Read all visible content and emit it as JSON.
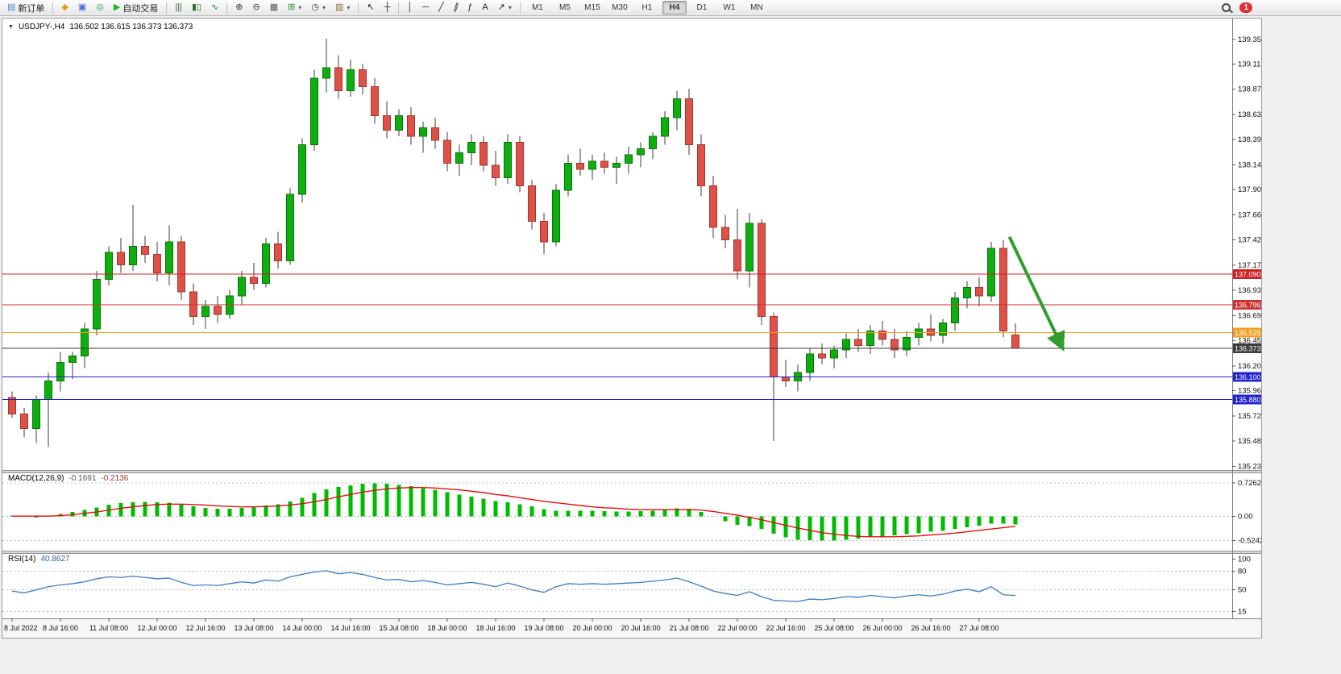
{
  "toolbar": {
    "active_timeframe": "H4",
    "notification_count": "1",
    "items": [
      {
        "type": "button",
        "name": "new-order-button",
        "glyph": "▤",
        "color": "#5b7fd0",
        "label": "新订单"
      },
      {
        "type": "sep"
      },
      {
        "type": "button",
        "name": "market-watch-button",
        "glyph": "◆",
        "color": "#d9a21b"
      },
      {
        "type": "button",
        "name": "data-window-button",
        "glyph": "▣",
        "color": "#4a6fd4"
      },
      {
        "type": "button",
        "name": "navigator-button",
        "glyph": "◎",
        "color": "#3f9e3f"
      },
      {
        "type": "button",
        "name": "autotrading-button",
        "glyph": "▶",
        "color": "#18b518",
        "label": "自动交易"
      },
      {
        "type": "sep"
      },
      {
        "type": "button",
        "name": "bars-chart-button",
        "glyph": "|||",
        "color": "#2e6e2e"
      },
      {
        "type": "button",
        "name": "candlestick-chart-button",
        "glyph": "▮▯",
        "color": "#2e6e2e"
      },
      {
        "type": "button",
        "name": "line-chart-button",
        "glyph": "∿",
        "color": "#2e6e2e"
      },
      {
        "type": "sep"
      },
      {
        "type": "button",
        "name": "zoom-in-button",
        "glyph": "⊕",
        "color": "#333333"
      },
      {
        "type": "button",
        "name": "zoom-out-button",
        "glyph": "⊖",
        "color": "#333333"
      },
      {
        "type": "button",
        "name": "tile-windows-button",
        "glyph": "▦",
        "color": "#555555"
      },
      {
        "type": "button",
        "name": "indicators-button",
        "glyph": "⊞",
        "color": "#2e8b2e",
        "dropdown": true
      },
      {
        "type": "button",
        "name": "periods-button",
        "glyph": "◷",
        "color": "#333333",
        "dropdown": true
      },
      {
        "type": "button",
        "name": "templates-button",
        "glyph": "▥",
        "color": "#8a6d3b",
        "dropdown": true
      },
      {
        "type": "sep"
      },
      {
        "type": "button",
        "name": "cursor-button",
        "glyph": "↖",
        "color": "#222222"
      },
      {
        "type": "button",
        "name": "crosshair-button",
        "glyph": "┼",
        "color": "#222222"
      },
      {
        "type": "sep"
      },
      {
        "type": "button",
        "name": "vertical-line-button",
        "glyph": "│",
        "color": "#222222"
      },
      {
        "type": "button",
        "name": "horizontal-line-button",
        "glyph": "─",
        "color": "#222222"
      },
      {
        "type": "button",
        "name": "trendline-button",
        "glyph": "╱",
        "color": "#222222"
      },
      {
        "type": "button",
        "name": "channel-button",
        "glyph": "∥",
        "color": "#222222",
        "cls": "skew"
      },
      {
        "type": "button",
        "name": "fibonacci-button",
        "glyph": "ƒ",
        "color": "#222222"
      },
      {
        "type": "button",
        "name": "text-button",
        "glyph": "A",
        "color": "#222222"
      },
      {
        "type": "button",
        "name": "arrows-button",
        "glyph": "↗",
        "color": "#222222",
        "dropdown": true
      },
      {
        "type": "sep"
      },
      {
        "type": "tf",
        "label": "M1"
      },
      {
        "type": "tf",
        "label": "M5"
      },
      {
        "type": "tf",
        "label": "M15"
      },
      {
        "type": "tf",
        "label": "M30"
      },
      {
        "type": "tf",
        "label": "H1"
      },
      {
        "type": "tf",
        "label": "H4"
      },
      {
        "type": "tf",
        "label": "D1"
      },
      {
        "type": "tf",
        "label": "W1"
      },
      {
        "type": "tf",
        "label": "MN"
      },
      {
        "type": "spacer"
      },
      {
        "type": "button",
        "name": "search-button",
        "glyph": "",
        "cls": "mag"
      },
      {
        "type": "badge",
        "name": "notification-badge"
      }
    ]
  },
  "chart": {
    "collapse_icon": "▼",
    "title_symbol": "USDJPY-,H4",
    "title_ohlc": "136.502 136.615 136.373 136.373"
  },
  "chart_data": [
    {
      "type": "candlestick",
      "title": "USDJPY-,H4",
      "ohlc_display": {
        "open": "136.502",
        "high": "136.615",
        "low": "136.373",
        "close": "136.373"
      },
      "ylim": [
        135.2,
        139.54
      ],
      "y_axis_ticks": [
        "139.355",
        "139.115",
        "138.875",
        "138.630",
        "138.390",
        "138.145",
        "137.905",
        "137.660",
        "137.420",
        "137.175",
        "136.935",
        "136.690",
        "136.450",
        "136.205",
        "135.965",
        "135.720",
        "135.480",
        "135.235"
      ],
      "x_label_step": 4,
      "x_labels": [
        "8 Jul 2022",
        "8 Jul 16:00",
        "11 Jul 08:00",
        "12 Jul 00:00",
        "12 Jul 16:00",
        "13 Jul 08:00",
        "14 Jul 00:00",
        "14 Jul 16:00",
        "15 Jul 08:00",
        "18 Jul 00:00",
        "18 Jul 16:00",
        "19 Jul 08:00",
        "20 Jul 00:00",
        "20 Jul 16:00",
        "21 Jul 08:00",
        "22 Jul 00:00",
        "22 Jul 16:00",
        "25 Jul 08:00",
        "26 Jul 00:00",
        "26 Jul 16:00",
        "27 Jul 08:00"
      ],
      "bull_color": "#0fae0f",
      "bull_stroke": "#077407",
      "bear_color": "#dd5149",
      "bear_stroke": "#9c382f",
      "wick_color": "#3c3c3c",
      "candles": [
        [
          135.9,
          135.96,
          135.7,
          135.74
        ],
        [
          135.74,
          135.8,
          135.52,
          135.6
        ],
        [
          135.6,
          135.92,
          135.46,
          135.88
        ],
        [
          135.88,
          136.14,
          135.42,
          136.06
        ],
        [
          136.06,
          136.34,
          135.96,
          136.24
        ],
        [
          136.24,
          136.34,
          136.08,
          136.3
        ],
        [
          136.3,
          136.62,
          136.18,
          136.56
        ],
        [
          136.56,
          137.12,
          136.5,
          137.04
        ],
        [
          137.04,
          137.36,
          136.98,
          137.3
        ],
        [
          137.3,
          137.44,
          137.1,
          137.18
        ],
        [
          137.18,
          137.76,
          137.12,
          137.36
        ],
        [
          137.36,
          137.46,
          137.2,
          137.28
        ],
        [
          137.28,
          137.4,
          137.02,
          137.1
        ],
        [
          137.1,
          137.56,
          136.98,
          137.4
        ],
        [
          137.4,
          137.46,
          136.84,
          136.92
        ],
        [
          136.92,
          137.0,
          136.6,
          136.68
        ],
        [
          136.68,
          136.84,
          136.56,
          136.78
        ],
        [
          136.78,
          136.88,
          136.62,
          136.7
        ],
        [
          136.7,
          136.94,
          136.66,
          136.88
        ],
        [
          136.88,
          137.12,
          136.8,
          137.06
        ],
        [
          137.06,
          137.2,
          136.94,
          137.0
        ],
        [
          137.0,
          137.44,
          136.96,
          137.38
        ],
        [
          137.38,
          137.5,
          137.14,
          137.22
        ],
        [
          137.22,
          137.92,
          137.18,
          137.86
        ],
        [
          137.86,
          138.4,
          137.78,
          138.34
        ],
        [
          138.34,
          139.06,
          138.28,
          138.98
        ],
        [
          138.98,
          139.36,
          138.84,
          139.08
        ],
        [
          139.08,
          139.2,
          138.78,
          138.86
        ],
        [
          138.86,
          139.16,
          138.8,
          139.06
        ],
        [
          139.06,
          139.12,
          138.82,
          138.9
        ],
        [
          138.9,
          138.98,
          138.54,
          138.62
        ],
        [
          138.62,
          138.76,
          138.4,
          138.48
        ],
        [
          138.48,
          138.68,
          138.42,
          138.62
        ],
        [
          138.62,
          138.7,
          138.34,
          138.42
        ],
        [
          138.42,
          138.56,
          138.26,
          138.5
        ],
        [
          138.5,
          138.6,
          138.3,
          138.38
        ],
        [
          138.38,
          138.46,
          138.08,
          138.16
        ],
        [
          138.16,
          138.34,
          138.04,
          138.26
        ],
        [
          138.26,
          138.44,
          138.14,
          138.36
        ],
        [
          138.36,
          138.42,
          138.08,
          138.14
        ],
        [
          138.14,
          138.28,
          137.94,
          138.02
        ],
        [
          138.02,
          138.44,
          137.96,
          138.36
        ],
        [
          138.36,
          138.42,
          137.88,
          137.94
        ],
        [
          137.94,
          138.0,
          137.52,
          137.6
        ],
        [
          137.6,
          137.68,
          137.28,
          137.4
        ],
        [
          137.4,
          137.96,
          137.36,
          137.9
        ],
        [
          137.9,
          138.24,
          137.84,
          138.16
        ],
        [
          138.16,
          138.3,
          138.04,
          138.1
        ],
        [
          138.1,
          138.24,
          138.0,
          138.18
        ],
        [
          138.18,
          138.26,
          138.06,
          138.12
        ],
        [
          138.12,
          138.22,
          137.96,
          138.16
        ],
        [
          138.16,
          138.32,
          138.06,
          138.24
        ],
        [
          138.24,
          138.36,
          138.12,
          138.3
        ],
        [
          138.3,
          138.46,
          138.2,
          138.42
        ],
        [
          138.42,
          138.66,
          138.34,
          138.6
        ],
        [
          138.6,
          138.86,
          138.48,
          138.78
        ],
        [
          138.78,
          138.88,
          138.24,
          138.34
        ],
        [
          138.34,
          138.44,
          137.84,
          137.94
        ],
        [
          137.94,
          138.04,
          137.44,
          137.54
        ],
        [
          137.54,
          137.66,
          137.34,
          137.42
        ],
        [
          137.42,
          137.72,
          137.04,
          137.12
        ],
        [
          137.12,
          137.68,
          136.96,
          137.58
        ],
        [
          137.58,
          137.62,
          136.6,
          136.68
        ],
        [
          136.68,
          136.72,
          135.48,
          136.1
        ],
        [
          136.1,
          136.26,
          136.0,
          136.06
        ],
        [
          136.06,
          136.22,
          135.96,
          136.14
        ],
        [
          136.14,
          136.38,
          136.06,
          136.32
        ],
        [
          136.32,
          136.42,
          136.22,
          136.28
        ],
        [
          136.28,
          136.4,
          136.18,
          136.36
        ],
        [
          136.36,
          136.52,
          136.28,
          136.46
        ],
        [
          136.46,
          136.56,
          136.34,
          136.4
        ],
        [
          136.4,
          136.6,
          136.32,
          136.54
        ],
        [
          136.54,
          136.64,
          136.4,
          136.46
        ],
        [
          136.46,
          136.56,
          136.28,
          136.36
        ],
        [
          136.36,
          136.54,
          136.3,
          136.48
        ],
        [
          136.48,
          136.62,
          136.4,
          136.56
        ],
        [
          136.56,
          136.7,
          136.44,
          136.5
        ],
        [
          136.5,
          136.66,
          136.42,
          136.62
        ],
        [
          136.62,
          136.92,
          136.54,
          136.86
        ],
        [
          136.86,
          137.02,
          136.76,
          136.96
        ],
        [
          136.96,
          137.06,
          136.78,
          136.88
        ],
        [
          136.88,
          137.4,
          136.82,
          137.34
        ],
        [
          137.34,
          137.42,
          136.48,
          136.54
        ],
        [
          136.502,
          136.615,
          136.373,
          136.373
        ]
      ],
      "hlines": [
        {
          "price": 137.09,
          "label": "137.090",
          "color": "#cc2020"
        },
        {
          "price": 136.796,
          "label": "136.796",
          "color": "#cc3030"
        },
        {
          "price": 136.525,
          "label": "136.525",
          "color": "#f0a020"
        },
        {
          "price": 136.373,
          "label": "136.373",
          "color": "#3c3c3c",
          "is_current": true
        },
        {
          "price": 136.1,
          "label": "136.100",
          "color": "#2020cc"
        },
        {
          "price": 135.88,
          "label": "135.880",
          "color": "#2020cc"
        }
      ],
      "arrow": {
        "from": {
          "candle": 82.5,
          "price": 137.45
        },
        "to": {
          "candle": 86.8,
          "price": 136.4
        },
        "color": "#2f9e2f"
      }
    },
    {
      "type": "bar",
      "label": "MACD(12,26,9)",
      "value_main": "-0.1691",
      "value_signal": "-0.2136",
      "ylim": [
        -0.6,
        0.8
      ],
      "y_ticks": [
        "0.7262",
        "0.00",
        "-0.5242"
      ],
      "grid_levels": [
        0.7262,
        0,
        -0.5242
      ],
      "histogram_color": "#00bb00",
      "signal_color": "#e01010",
      "histogram": [
        0.02,
        0.0,
        -0.02,
        0.02,
        0.06,
        0.1,
        0.14,
        0.2,
        0.26,
        0.29,
        0.31,
        0.32,
        0.31,
        0.3,
        0.26,
        0.22,
        0.19,
        0.17,
        0.17,
        0.19,
        0.21,
        0.24,
        0.27,
        0.33,
        0.41,
        0.51,
        0.59,
        0.64,
        0.68,
        0.71,
        0.72,
        0.71,
        0.69,
        0.66,
        0.62,
        0.58,
        0.53,
        0.48,
        0.43,
        0.39,
        0.34,
        0.31,
        0.27,
        0.22,
        0.16,
        0.13,
        0.13,
        0.13,
        0.13,
        0.12,
        0.11,
        0.11,
        0.12,
        0.13,
        0.15,
        0.18,
        0.17,
        0.1,
        0.0,
        -0.1,
        -0.18,
        -0.21,
        -0.27,
        -0.37,
        -0.45,
        -0.5,
        -0.51,
        -0.52,
        -0.52,
        -0.5,
        -0.48,
        -0.45,
        -0.43,
        -0.41,
        -0.38,
        -0.36,
        -0.33,
        -0.31,
        -0.27,
        -0.23,
        -0.2,
        -0.15,
        -0.15,
        -0.1691
      ],
      "signal": [
        0.01,
        0.01,
        0.01,
        0.01,
        0.02,
        0.04,
        0.07,
        0.1,
        0.14,
        0.18,
        0.21,
        0.24,
        0.26,
        0.27,
        0.27,
        0.26,
        0.25,
        0.23,
        0.22,
        0.21,
        0.21,
        0.22,
        0.23,
        0.25,
        0.28,
        0.32,
        0.37,
        0.43,
        0.48,
        0.53,
        0.57,
        0.6,
        0.62,
        0.63,
        0.63,
        0.62,
        0.6,
        0.58,
        0.55,
        0.52,
        0.48,
        0.45,
        0.41,
        0.37,
        0.33,
        0.3,
        0.27,
        0.24,
        0.21,
        0.19,
        0.18,
        0.16,
        0.15,
        0.15,
        0.15,
        0.15,
        0.15,
        0.14,
        0.11,
        0.07,
        0.03,
        -0.02,
        -0.07,
        -0.13,
        -0.19,
        -0.25,
        -0.3,
        -0.35,
        -0.38,
        -0.41,
        -0.43,
        -0.44,
        -0.44,
        -0.44,
        -0.43,
        -0.42,
        -0.4,
        -0.38,
        -0.36,
        -0.33,
        -0.3,
        -0.27,
        -0.24,
        -0.2136
      ]
    },
    {
      "type": "line",
      "label": "RSI(14)",
      "value": "40.8627",
      "ylim": [
        9,
        103
      ],
      "y_ticks": [
        {
          "v": 100,
          "label": "100"
        },
        {
          "v": 80,
          "label": "80"
        },
        {
          "v": 50,
          "label": "50"
        },
        {
          "v": 15,
          "label": "15"
        }
      ],
      "levels": [
        80,
        50,
        15
      ],
      "line_color": "#3d7dc0",
      "values": [
        48,
        45,
        50,
        55,
        58,
        60,
        63,
        68,
        71,
        70,
        72,
        70,
        68,
        69,
        62,
        57,
        58,
        57,
        60,
        63,
        61,
        66,
        64,
        71,
        75,
        79,
        81,
        76,
        78,
        75,
        70,
        66,
        67,
        63,
        65,
        62,
        58,
        60,
        62,
        59,
        55,
        61,
        56,
        50,
        46,
        55,
        60,
        59,
        60,
        59,
        60,
        61,
        62,
        64,
        66,
        69,
        63,
        56,
        48,
        44,
        41,
        47,
        39,
        33,
        32,
        31,
        35,
        34,
        36,
        39,
        38,
        41,
        39,
        37,
        40,
        42,
        40,
        43,
        48,
        51,
        47,
        55,
        42,
        40.8627
      ]
    }
  ]
}
